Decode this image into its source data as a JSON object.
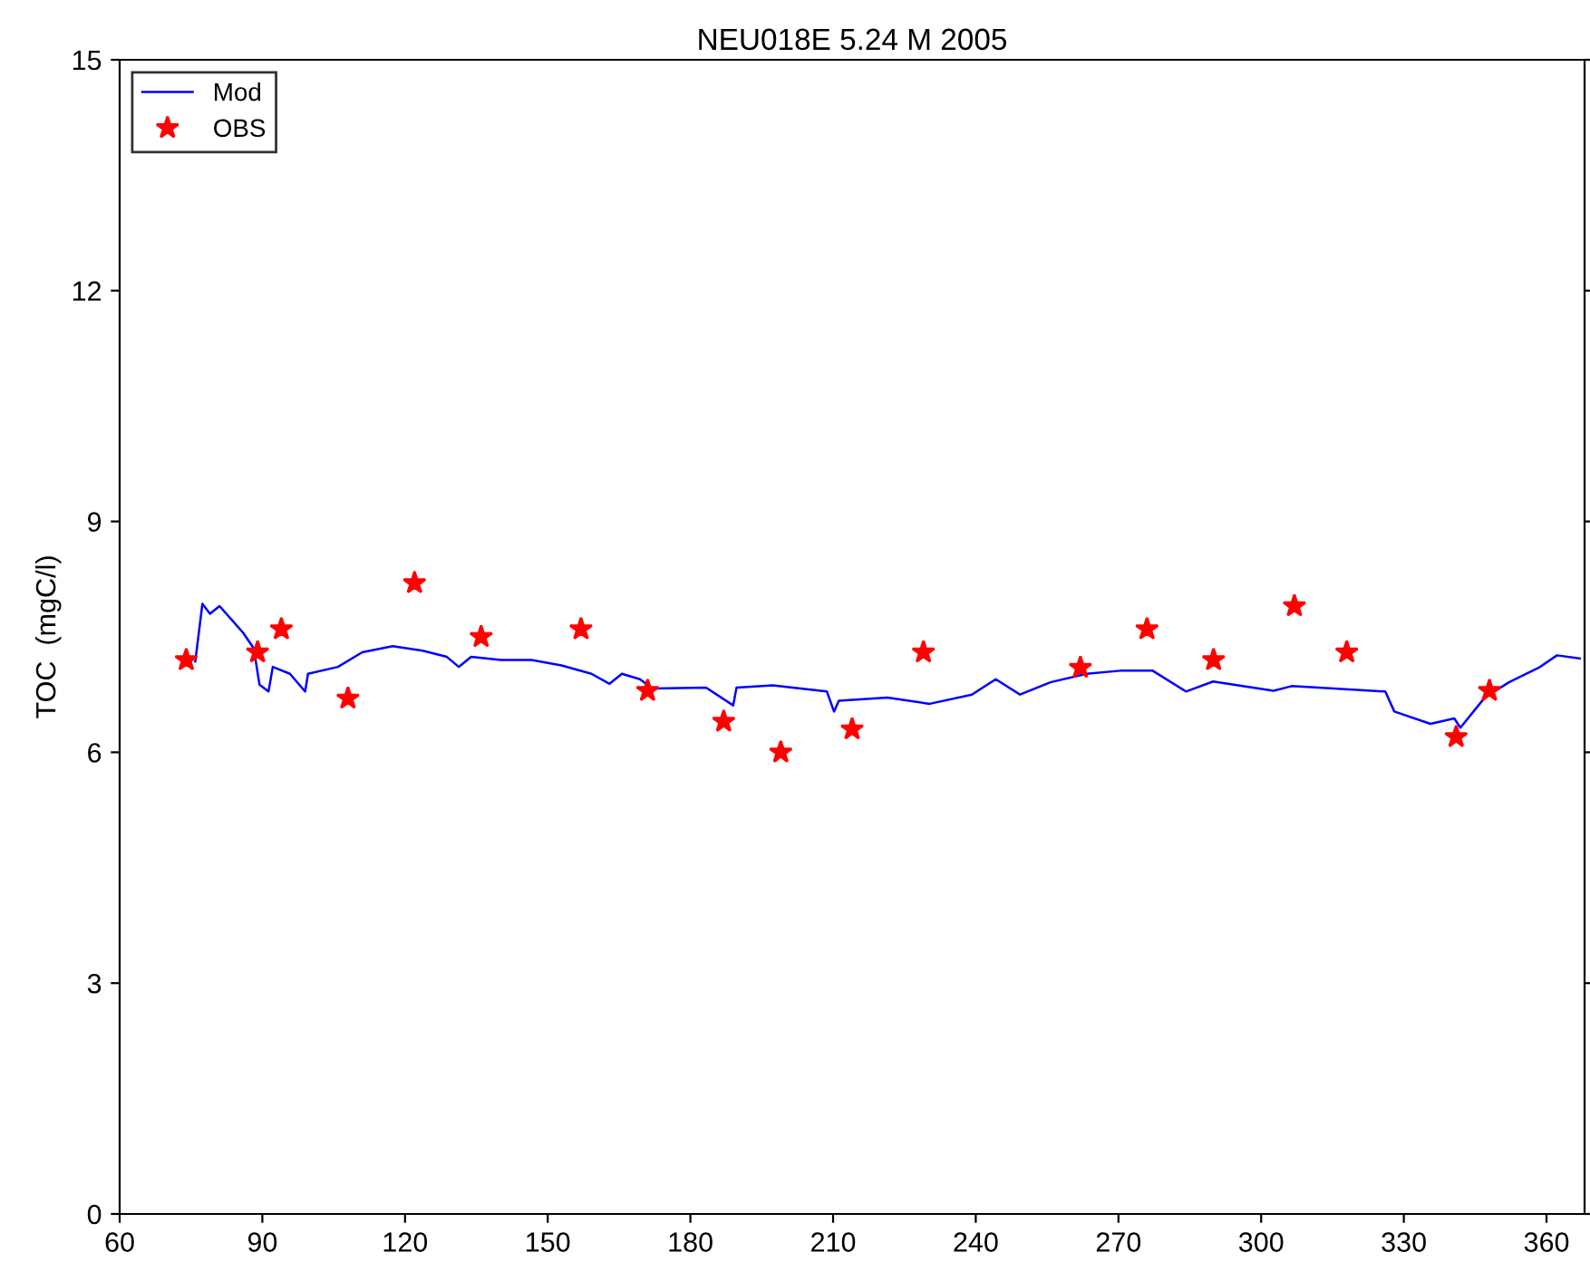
{
  "chart_data": {
    "type": "line",
    "title": "NEU018E 5.24 M 2005",
    "ylabel": "TOC  (mgC/l)",
    "xlim": [
      60,
      368
    ],
    "ylim": [
      0,
      15
    ],
    "xticks": [
      60,
      90,
      120,
      150,
      180,
      210,
      240,
      270,
      300,
      330,
      360
    ],
    "yticks": [
      0,
      3,
      6,
      9,
      12,
      15
    ],
    "grid": false,
    "legend": "top left",
    "series": [
      {
        "name": "Mod",
        "color": "#0000ff",
        "marker": "none",
        "x": [
          75.9,
          77.4,
          79,
          81,
          83.6,
          86,
          88.2,
          89.4,
          91.3,
          92.2,
          95.8,
          99,
          99.6,
          105.9,
          111,
          117.4,
          123.7,
          128.8,
          131.3,
          133.9,
          140.2,
          146.6,
          152.9,
          159.2,
          163,
          165.6,
          169.4,
          172,
          183.3,
          189,
          189.7,
          197.3,
          208.7,
          210.2,
          211.2,
          221.4,
          230.3,
          239.2,
          244.2,
          249.3,
          255.7,
          263.3,
          270.3,
          277.2,
          284.2,
          289.9,
          302.6,
          306.4,
          326.1,
          328,
          335.6,
          340.6,
          341.9,
          347,
          352.1,
          358.4,
          362.2,
          367
        ],
        "values": [
          7.18,
          7.93,
          7.8,
          7.9,
          7.72,
          7.55,
          7.35,
          6.88,
          6.79,
          7.11,
          7.02,
          6.79,
          7.02,
          7.11,
          7.3,
          7.38,
          7.32,
          7.24,
          7.11,
          7.24,
          7.2,
          7.2,
          7.13,
          7.02,
          6.89,
          7.02,
          6.95,
          6.83,
          6.84,
          6.61,
          6.84,
          6.87,
          6.79,
          6.53,
          6.67,
          6.71,
          6.63,
          6.75,
          6.95,
          6.75,
          6.91,
          7.02,
          7.06,
          7.06,
          6.79,
          6.92,
          6.8,
          6.86,
          6.79,
          6.53,
          6.37,
          6.44,
          6.32,
          6.71,
          6.91,
          7.1,
          7.26,
          7.22
        ]
      },
      {
        "name": "OBS",
        "type": "scatter",
        "color": "#ff0000",
        "marker": "star",
        "x": [
          74,
          89,
          94,
          108,
          122,
          136,
          157,
          171,
          187,
          199,
          214,
          229,
          262,
          276,
          290,
          307,
          318,
          341,
          348
        ],
        "values": [
          7.2,
          7.3,
          7.6,
          6.7,
          8.2,
          7.5,
          7.6,
          6.8,
          6.4,
          6.0,
          6.3,
          7.3,
          7.1,
          7.6,
          7.2,
          7.9,
          7.3,
          6.2,
          6.8
        ]
      }
    ]
  }
}
